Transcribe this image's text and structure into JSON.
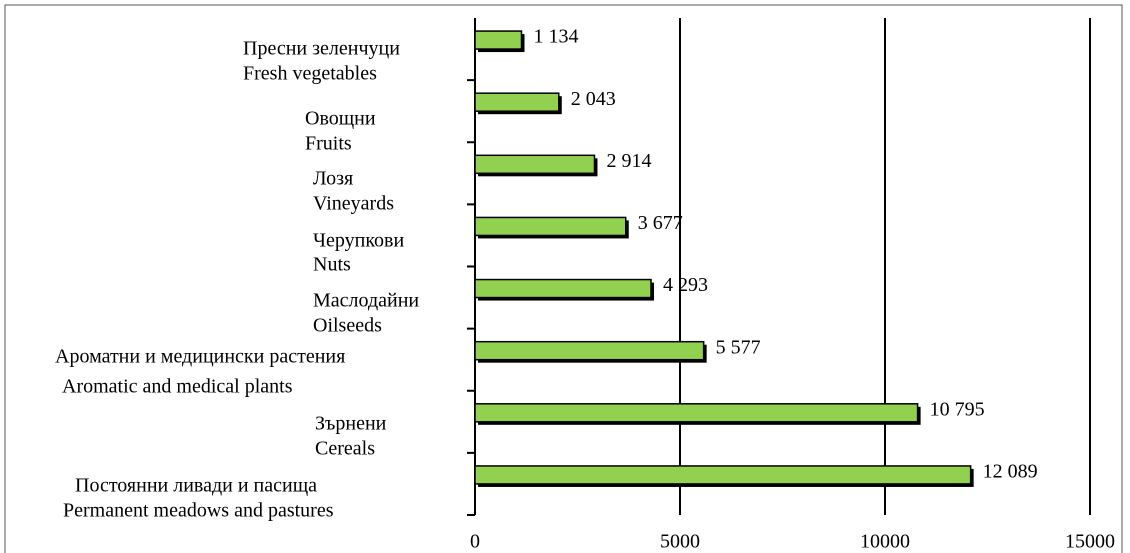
{
  "chart_data": {
    "type": "barh",
    "categories": [
      [
        "Пресни зеленчуци",
        "Fresh vegetables"
      ],
      [
        "Овощни",
        "Fruits"
      ],
      [
        "Лозя",
        "Vineyards"
      ],
      [
        "Черупкови",
        "Nuts"
      ],
      [
        "Маслодайни",
        "Oilseeds"
      ],
      [
        "Ароматни и медицински растения",
        "Aromatic and medical plants"
      ],
      [
        "Зърнени",
        "Cereals"
      ],
      [
        "Постоянни ливади и пасища",
        "Permanent meadows and pastures"
      ]
    ],
    "values": [
      1134,
      2043,
      2914,
      3677,
      4293,
      5577,
      10795,
      12089
    ],
    "value_labels": [
      "1 134",
      "2 043",
      "2 914",
      "3 677",
      "4 293",
      "5 577",
      "10 795",
      "12 089"
    ],
    "color": "#92d050",
    "xlim": [
      0,
      15000
    ],
    "xticks": [
      0,
      5000,
      10000,
      15000
    ],
    "grid": true
  }
}
